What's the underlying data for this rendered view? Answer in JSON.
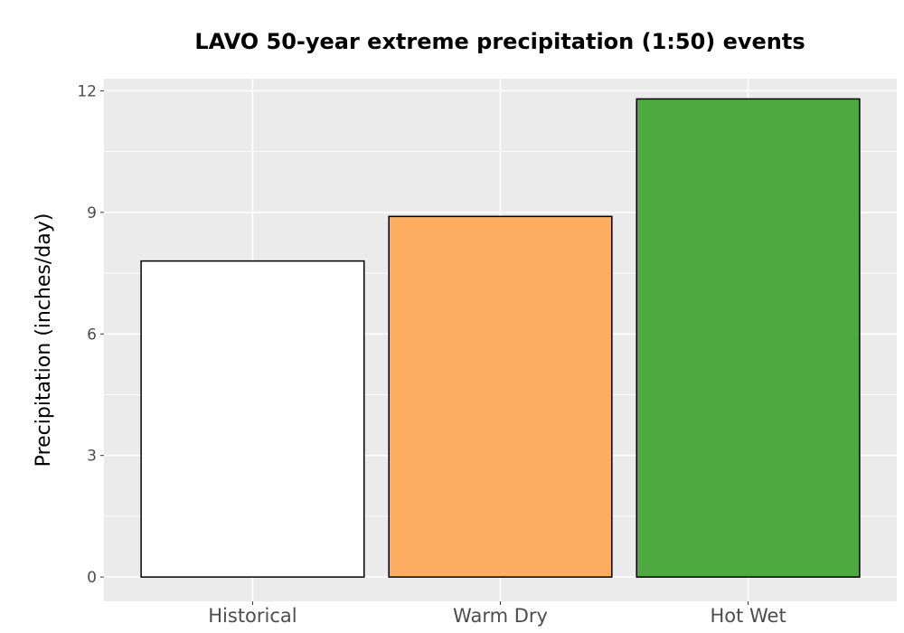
{
  "chart_data": {
    "type": "bar",
    "title": "LAVO 50-year extreme precipitation (1:50) events",
    "xlabel": "",
    "ylabel": "Precipitation (inches/day)",
    "categories": [
      "Historical",
      "Warm Dry",
      "Hot Wet"
    ],
    "values": [
      7.8,
      8.9,
      11.8
    ],
    "bar_colors": [
      "#ffffff",
      "#fcad62",
      "#4eaa40"
    ],
    "bar_outline": "#000000",
    "ylim": [
      -0.6,
      12.3
    ],
    "yticks": [
      0,
      3,
      6,
      9,
      12
    ],
    "ytick_labels": [
      "0",
      "3",
      "6",
      "9",
      "12"
    ],
    "grid": true,
    "panel_background": "#ebebeb",
    "grid_color": "#ffffff",
    "legend": "none"
  }
}
